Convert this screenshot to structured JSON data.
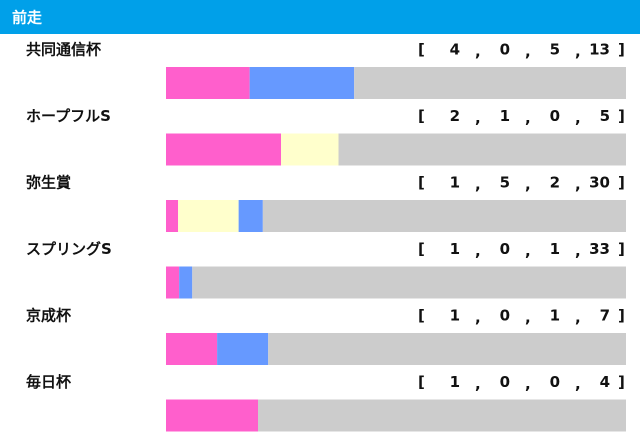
{
  "chart_data": {
    "type": "bar",
    "stacked": true,
    "orientation": "horizontal",
    "title": "前走",
    "categories": [
      "共同通信杯",
      "ホープフルS",
      "弥生賞",
      "スプリングS",
      "京成杯",
      "毎日杯"
    ],
    "series": [
      {
        "color": "#ff5fcc",
        "values": [
          4,
          2,
          1,
          1,
          1,
          1
        ]
      },
      {
        "color": "#ffffcc",
        "values": [
          0,
          1,
          5,
          0,
          0,
          0
        ]
      },
      {
        "color": "#6699ff",
        "values": [
          5,
          0,
          2,
          1,
          1,
          0
        ]
      },
      {
        "color": "#cccccc",
        "values": [
          13,
          5,
          30,
          33,
          7,
          4
        ]
      }
    ]
  }
}
